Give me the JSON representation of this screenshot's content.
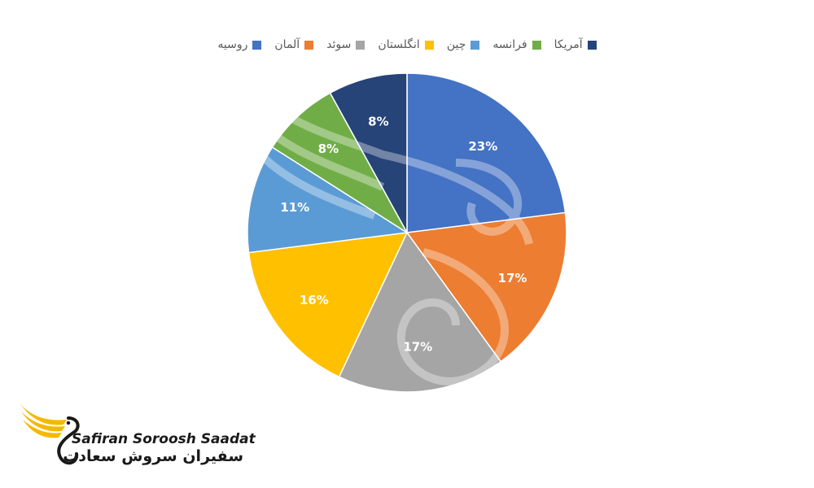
{
  "chart_data": {
    "type": "pie",
    "title": "",
    "legend_position": "top",
    "slices": [
      {
        "name": "روسیه",
        "value": 23,
        "label": "23%",
        "color": "#4472C4"
      },
      {
        "name": "آلمان",
        "value": 17,
        "label": "17%",
        "color": "#ED7D31"
      },
      {
        "name": "سوئد",
        "value": 17,
        "label": "17%",
        "color": "#A5A5A5"
      },
      {
        "name": "انگلستان",
        "value": 16,
        "label": "16%",
        "color": "#FFC000"
      },
      {
        "name": "چین",
        "value": 11,
        "label": "11%",
        "color": "#5B9BD5"
      },
      {
        "name": "فرانسه",
        "value": 8,
        "label": "8%",
        "color": "#70AD47"
      },
      {
        "name": "آمریکا",
        "value": 8,
        "label": "8%",
        "color": "#264478"
      }
    ]
  },
  "logo": {
    "name_en": "Safiran Soroosh Saadat",
    "name_fa": "سفیران سروش سعادت",
    "accent_color": "#F5B800",
    "icon": "swan-wing-icon"
  }
}
